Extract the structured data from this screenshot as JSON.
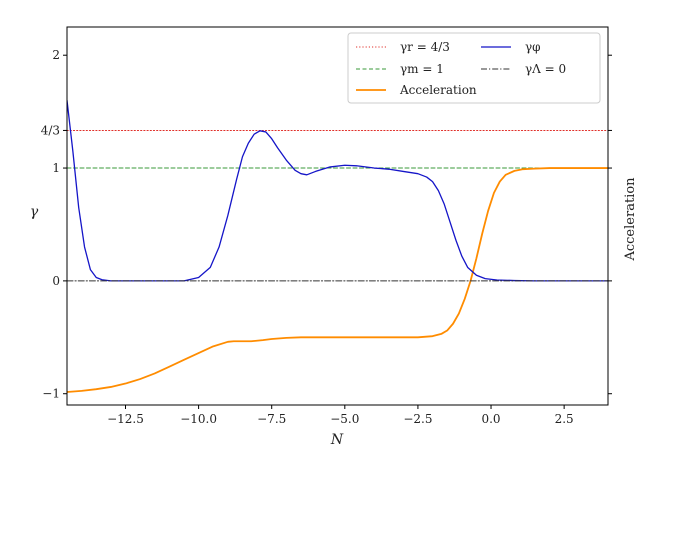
{
  "chart_data": {
    "type": "line",
    "xlabel": "N",
    "ylabel": "γ",
    "ylabel_right": "Acceleration",
    "xlim": [
      -14.5,
      4.0
    ],
    "ylim": [
      -1.1,
      2.25
    ],
    "grid": false,
    "legend_placement": "top-right",
    "x_ticks": [
      {
        "value": -12.5,
        "label": "−12.5"
      },
      {
        "value": -10.0,
        "label": "−10.0"
      },
      {
        "value": -7.5,
        "label": "−7.5"
      },
      {
        "value": -5.0,
        "label": "−5.0"
      },
      {
        "value": -2.5,
        "label": "−2.5"
      },
      {
        "value": 0.0,
        "label": "0.0"
      },
      {
        "value": 2.5,
        "label": "2.5"
      }
    ],
    "y_ticks": [
      {
        "value": -1,
        "label": "−1"
      },
      {
        "value": 0,
        "label": "0"
      },
      {
        "value": 1,
        "label": "1"
      },
      {
        "value": 1.3333,
        "label": "4/3"
      },
      {
        "value": 2,
        "label": "2"
      }
    ],
    "series": [
      {
        "name": "γ_r = 4/3",
        "legend_label": "γr = 4/3",
        "color": "#e0302a",
        "style": "dotted",
        "x": [
          -14.5,
          4.0
        ],
        "y": [
          1.3333,
          1.3333
        ]
      },
      {
        "name": "γ_m = 1",
        "legend_label": "γm = 1",
        "color": "#3a9a3a",
        "style": "dashed",
        "x": [
          -14.5,
          4.0
        ],
        "y": [
          1.0,
          1.0
        ]
      },
      {
        "name": "Acceleration",
        "legend_label": "Acceleration",
        "color": "#ff8c00",
        "style": "solid",
        "x": [
          -14.5,
          -14.0,
          -13.5,
          -13.0,
          -12.5,
          -12.0,
          -11.5,
          -11.0,
          -10.5,
          -10.0,
          -9.5,
          -9.0,
          -8.8,
          -8.5,
          -8.2,
          -7.8,
          -7.5,
          -7.0,
          -6.5,
          -6.0,
          -5.5,
          -5.0,
          -4.5,
          -4.0,
          -3.5,
          -3.0,
          -2.5,
          -2.0,
          -1.7,
          -1.5,
          -1.3,
          -1.1,
          -0.9,
          -0.7,
          -0.5,
          -0.3,
          -0.1,
          0.1,
          0.3,
          0.5,
          0.8,
          1.1,
          1.5,
          2.0,
          3.0,
          4.0
        ],
        "y": [
          -0.985,
          -0.975,
          -0.96,
          -0.94,
          -0.91,
          -0.87,
          -0.82,
          -0.76,
          -0.7,
          -0.64,
          -0.58,
          -0.54,
          -0.535,
          -0.535,
          -0.535,
          -0.525,
          -0.515,
          -0.505,
          -0.5,
          -0.5,
          -0.5,
          -0.5,
          -0.5,
          -0.5,
          -0.5,
          -0.5,
          -0.5,
          -0.49,
          -0.47,
          -0.44,
          -0.38,
          -0.29,
          -0.16,
          0.0,
          0.2,
          0.42,
          0.62,
          0.78,
          0.88,
          0.94,
          0.975,
          0.99,
          0.995,
          1.0,
          1.0,
          1.0
        ]
      },
      {
        "name": "γ_φ",
        "legend_label": "γφ",
        "color": "#1515c8",
        "style": "solid",
        "x": [
          -14.5,
          -14.3,
          -14.1,
          -13.9,
          -13.7,
          -13.5,
          -13.3,
          -13.0,
          -12.5,
          -11.5,
          -10.5,
          -10.0,
          -9.6,
          -9.3,
          -9.0,
          -8.7,
          -8.5,
          -8.3,
          -8.1,
          -7.9,
          -7.7,
          -7.5,
          -7.3,
          -7.0,
          -6.7,
          -6.5,
          -6.3,
          -6.0,
          -5.5,
          -5.0,
          -4.6,
          -4.0,
          -3.5,
          -3.0,
          -2.5,
          -2.2,
          -2.0,
          -1.8,
          -1.6,
          -1.4,
          -1.2,
          -1.0,
          -0.8,
          -0.5,
          -0.2,
          0.2,
          0.8,
          1.5,
          2.5,
          4.0
        ],
        "y": [
          1.6,
          1.15,
          0.65,
          0.3,
          0.1,
          0.03,
          0.01,
          0.0,
          0.0,
          0.0,
          0.0,
          0.03,
          0.12,
          0.3,
          0.58,
          0.9,
          1.1,
          1.22,
          1.3,
          1.33,
          1.32,
          1.26,
          1.18,
          1.07,
          0.98,
          0.95,
          0.94,
          0.97,
          1.01,
          1.025,
          1.02,
          1.0,
          0.99,
          0.97,
          0.95,
          0.92,
          0.88,
          0.8,
          0.68,
          0.52,
          0.36,
          0.22,
          0.12,
          0.05,
          0.02,
          0.008,
          0.003,
          0.0,
          0.0,
          0.0
        ]
      },
      {
        "name": "γ_Λ = 0",
        "legend_label": "γΛ = 0",
        "color": "#333333",
        "style": "dashdot",
        "x": [
          -14.5,
          4.0
        ],
        "y": [
          0,
          0
        ]
      }
    ]
  }
}
